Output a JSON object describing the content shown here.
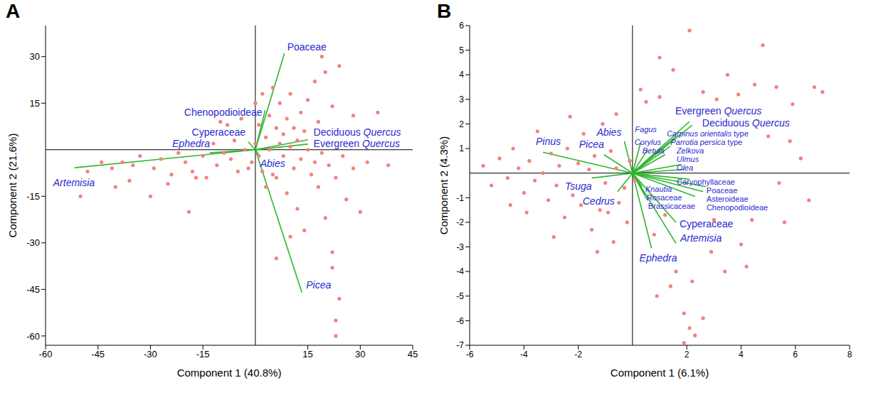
{
  "chart_data": [
    {
      "type": "scatter",
      "panel": "A",
      "x_label": "Component 1 (40.8%)",
      "y_label": "Component 2 (21.6%)",
      "xlim": [
        -60,
        45
      ],
      "ylim": [
        -63,
        40
      ],
      "xticks": [
        -60,
        -45,
        -30,
        -15,
        15,
        30,
        45
      ],
      "yticks": [
        -60,
        -45,
        -30,
        -15,
        15,
        30
      ],
      "points": {
        "color": "#f4827b",
        "x": [
          -48,
          -44,
          -41,
          -38,
          -36,
          -35,
          -33,
          -30,
          -29,
          -27,
          -25,
          -24,
          -22,
          -20,
          -18,
          -17,
          -15,
          -14,
          -12,
          -11,
          -10,
          -9,
          -8,
          -7,
          -6,
          -5,
          -4,
          -3,
          -2,
          -1,
          0,
          0,
          1,
          1,
          2,
          2,
          3,
          3,
          4,
          4,
          5,
          5,
          6,
          6,
          7,
          7,
          8,
          8,
          9,
          9,
          10,
          10,
          11,
          11,
          12,
          12,
          13,
          13,
          14,
          14,
          15,
          15,
          16,
          17,
          17,
          18,
          18,
          19,
          20,
          20,
          21,
          22,
          22,
          23,
          24,
          25,
          26,
          28,
          30,
          22,
          23,
          23,
          24,
          6,
          10,
          28,
          32,
          35,
          38,
          19,
          -50,
          -19,
          -40
        ],
        "y": [
          -7,
          -4,
          -6,
          -4,
          -10,
          -5,
          -2,
          -15,
          -6,
          -3,
          -11,
          -8,
          -1,
          -4,
          -7,
          -9,
          -2,
          -9,
          2,
          -5,
          9,
          -1,
          8,
          -3,
          3,
          -7,
          10,
          0,
          -6,
          -4,
          15,
          2,
          -2,
          8,
          18,
          -7,
          4,
          -12,
          11,
          0,
          -8,
          20,
          7,
          -9,
          2,
          15,
          -2,
          5,
          -14,
          10,
          1,
          18,
          -6,
          7,
          3,
          -19,
          12,
          -3,
          6,
          -26,
          0,
          16,
          -8,
          -4,
          22,
          -12,
          9,
          -1,
          25,
          -22,
          -5,
          -33,
          14,
          -9,
          27,
          -2,
          -16,
          11,
          -20,
          -38,
          -55,
          -60,
          -48,
          -35,
          -28,
          -6,
          -4,
          12,
          -5,
          30,
          -15,
          -20,
          -12
        ]
      },
      "vectors": {
        "color": "#2fb52f",
        "items": [
          {
            "label": "Poaceae",
            "x": 8.3,
            "y": 31
          },
          {
            "label": "Chenopodioideae",
            "x": 2.8,
            "y": 12.8
          },
          {
            "label": "Cyperaceae",
            "x": -2,
            "y": 2.5
          },
          {
            "label": "Ephedra",
            "x": -13,
            "y": -1
          },
          {
            "label": "Artemisia",
            "x": -51.7,
            "y": -5.8
          },
          {
            "label": "Deciduous Quercus",
            "x": 15,
            "y": 3.2
          },
          {
            "label": "Evergreen Quercus",
            "x": 15,
            "y": 1.8
          },
          {
            "label": "Abies",
            "x": 1.4,
            "y": -2.3
          },
          {
            "label": "Picea",
            "x": 13.3,
            "y": -46
          }
        ]
      }
    },
    {
      "type": "scatter",
      "panel": "B",
      "x_label": "Component 1 (6.1%)",
      "y_label": "Component 2 (4.3%)",
      "xlim": [
        -6,
        8
      ],
      "ylim": [
        -7,
        6
      ],
      "xticks": [
        -6,
        -4,
        -2,
        2,
        4,
        6,
        8
      ],
      "yticks": [
        -7,
        -6,
        -5,
        -4,
        -3,
        -2,
        -1,
        1,
        2,
        3,
        4,
        5,
        6
      ],
      "points": {
        "color": "#f4827b",
        "x": [
          -5.5,
          -5.2,
          -4.9,
          -4.6,
          -4.4,
          -4.2,
          -4.0,
          -3.8,
          -3.6,
          -3.5,
          -3.3,
          -3.1,
          -3.0,
          -2.8,
          -2.7,
          -2.5,
          -2.4,
          -2.2,
          -2.0,
          -1.9,
          -1.8,
          -1.6,
          -1.5,
          -1.4,
          -1.2,
          -1.1,
          -1.0,
          -0.9,
          -0.8,
          -0.7,
          -0.6,
          -0.5,
          -0.6,
          -0.3,
          -0.2,
          -0.1,
          -2.9,
          -3.9,
          -4.5,
          -2.3,
          -1.3,
          0.1,
          0.5,
          0.8,
          1.0,
          1.2,
          1.5,
          1.6,
          2.1,
          2.2,
          2.6,
          3.0,
          3.1,
          3.5,
          4.2,
          4.5,
          4.4,
          5.0,
          5.3,
          5.6,
          5.4,
          5.9,
          6.2,
          6.5,
          6.7,
          7.0,
          1.4,
          1.9,
          2.1,
          2.3,
          2.6,
          1.9,
          3.4,
          0.9,
          4.0,
          5.8,
          3.9,
          0.3,
          2.9,
          1.0,
          4.8
        ],
        "y": [
          0.3,
          -0.5,
          0.6,
          -0.2,
          1.0,
          0.2,
          -0.8,
          0.5,
          -0.3,
          1.7,
          0,
          -1.1,
          0.8,
          -0.5,
          0.3,
          -1.8,
          1.0,
          -0.9,
          0.4,
          -1.3,
          1.6,
          0.15,
          -2.3,
          0.7,
          -1.5,
          2.0,
          -0.4,
          -1.6,
          0.9,
          -2.8,
          0.2,
          -1.2,
          2.4,
          -0.6,
          -2.0,
          0.5,
          -2.6,
          -1.6,
          -1.3,
          2.3,
          -3.2,
          -0.3,
          2.9,
          -2.5,
          3.1,
          -1.7,
          4.2,
          -4.0,
          5.8,
          -4.4,
          3.3,
          -1.9,
          3.0,
          4.0,
          -3.8,
          3.6,
          -1.9,
          1.5,
          3.5,
          -2.0,
          -0.4,
          2.8,
          0.6,
          -1.1,
          3.5,
          3.3,
          -4.6,
          -5.7,
          -6.3,
          -6.6,
          -5.9,
          -6.9,
          -4.0,
          -5.0,
          -2.9,
          1.3,
          3.2,
          3.4,
          -3.2,
          4.7,
          5.2
        ]
      },
      "vectors": {
        "color": "#2fb52f",
        "items": [
          {
            "label": "Evergreen Quercus",
            "x": 2.1,
            "y": 2.1
          },
          {
            "label": "Deciduous Quercus",
            "x": 2.2,
            "y": 1.95
          },
          {
            "label": "Fagus",
            "x": 0.3,
            "y": 1.25
          },
          {
            "label": "Corylus",
            "x": 0.55,
            "y": 0.95
          },
          {
            "label": "Carpinus orientalis type",
            "x": 1.6,
            "y": 1.5
          },
          {
            "label": "Parrotia persica type",
            "x": 1.4,
            "y": 1.1
          },
          {
            "label": "Zelkova",
            "x": 1.2,
            "y": 0.75
          },
          {
            "label": "Betula",
            "x": 0.6,
            "y": 0.55
          },
          {
            "label": "Ulmus",
            "x": 1.8,
            "y": 0.35
          },
          {
            "label": "Olea",
            "x": 1.9,
            "y": 0.15
          },
          {
            "label": "Caryophyllaceae",
            "x": 2.1,
            "y": -0.25
          },
          {
            "label": "Poaceae",
            "x": 2.7,
            "y": -0.55
          },
          {
            "label": "Asteroideae",
            "x": 2.6,
            "y": -0.75
          },
          {
            "label": "Chenopodioideae",
            "x": 2.3,
            "y": -0.95
          },
          {
            "label": "Knautia",
            "x": 0.35,
            "y": -0.55
          },
          {
            "label": "Rosaceae",
            "x": 0.45,
            "y": -0.85
          },
          {
            "label": "Brassicaceae",
            "x": 0.55,
            "y": -1.1
          },
          {
            "label": "Cyperaceae",
            "x": 1.6,
            "y": -2.0
          },
          {
            "label": "Artemisia",
            "x": 1.6,
            "y": -2.85
          },
          {
            "label": "Ephedra",
            "x": 0.7,
            "y": -3.05
          },
          {
            "label": "Abies",
            "x": -0.3,
            "y": 1.3
          },
          {
            "label": "Picea",
            "x": -1.05,
            "y": 0.75
          },
          {
            "label": "Pinus",
            "x": -3.3,
            "y": 0.85
          },
          {
            "label": "Tsuga",
            "x": -1.5,
            "y": -0.2
          },
          {
            "label": "Cedrus",
            "x": -0.55,
            "y": -0.75
          }
        ]
      }
    }
  ]
}
